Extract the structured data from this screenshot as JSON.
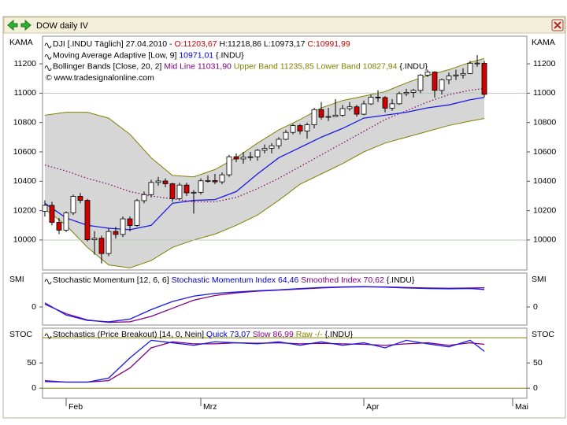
{
  "window": {
    "title": "DOW daily IV"
  },
  "chart_data": [
    {
      "type": "candlestick",
      "axis_label": "KAMA",
      "legend": [
        [
          {
            "text": "DJI [.INDU Täglich] 27.04.2010 - ",
            "color": "#000000"
          },
          {
            "text": "O:11203,67",
            "color": "#cc0000"
          },
          {
            "text": " H:11218,86 L:10973,17 ",
            "color": "#000000"
          },
          {
            "text": "C:10991,99",
            "color": "#cc0000"
          }
        ],
        [
          {
            "text": "Moving Average Adaptive [Low, 9] ",
            "color": "#000000"
          },
          {
            "text": "10971,01",
            "color": "#0000cc"
          },
          {
            "text": " {.INDU}",
            "color": "#000000"
          }
        ],
        [
          {
            "text": "Bollinger Bands [Close, 20, 2] ",
            "color": "#000000"
          },
          {
            "text": "Mid Line 11031,90",
            "color": "#800080"
          },
          {
            "text": " Upper Band 11235,85 Lower Band 10827,94",
            "color": "#808000"
          },
          {
            "text": " {.INDU}",
            "color": "#000000"
          }
        ],
        [
          {
            "text": "© www.tradesignalonline.com",
            "color": "#000000"
          }
        ]
      ],
      "x": [
        0,
        1,
        2,
        3,
        4,
        5,
        6,
        7,
        8,
        9,
        10,
        11,
        12,
        13,
        14,
        15,
        16,
        17,
        18,
        19,
        20,
        21,
        22,
        23,
        24,
        25,
        26,
        27,
        28,
        29,
        30,
        31,
        32,
        33,
        34,
        35,
        36,
        37,
        38,
        39,
        40,
        41,
        42,
        43,
        44,
        45,
        46,
        47,
        48,
        49,
        50,
        51,
        52,
        53,
        54,
        55,
        56,
        57,
        58,
        59,
        60,
        61,
        62
      ],
      "open": [
        10195,
        10236,
        10120,
        10067,
        10185,
        10297,
        10270,
        10002,
        10012,
        9908,
        10058,
        10038,
        10144,
        10099,
        10268,
        10309,
        10392,
        10402,
        10383,
        10282,
        10374,
        10321,
        10325,
        10403,
        10405,
        10396,
        10444,
        10567,
        10552,
        10564,
        10567,
        10611,
        10625,
        10642,
        10686,
        10733,
        10779,
        10742,
        10785,
        10888,
        10836,
        10841,
        10850,
        10895,
        10907,
        10857,
        10927,
        10973,
        10970,
        10898,
        10928,
        10997,
        11005,
        11019,
        11123,
        11144,
        11019,
        11092,
        11117,
        11124,
        11134,
        11204,
        11203.67
      ],
      "high": [
        10270,
        10260,
        10150,
        10195,
        10310,
        10320,
        10280,
        10060,
        10030,
        10080,
        10090,
        10160,
        10160,
        10280,
        10330,
        10410,
        10430,
        10420,
        10390,
        10390,
        10390,
        10340,
        10420,
        10440,
        10450,
        10460,
        10580,
        10590,
        10600,
        10600,
        10620,
        10650,
        10660,
        10700,
        10750,
        10790,
        10790,
        10800,
        10900,
        10940,
        10900,
        10960,
        10920,
        10940,
        10920,
        10950,
        10990,
        11020,
        10980,
        10960,
        11010,
        11030,
        11030,
        11130,
        11160,
        11150,
        11100,
        11140,
        11160,
        11170,
        11220,
        11260,
        11218.86
      ],
      "low": [
        10160,
        10100,
        10040,
        10055,
        10170,
        10250,
        9990,
        9900,
        9840,
        9890,
        10010,
        10020,
        10060,
        10090,
        10250,
        10290,
        10370,
        10360,
        10260,
        10270,
        10300,
        10180,
        10310,
        10390,
        10380,
        10380,
        10430,
        10530,
        10520,
        10540,
        10540,
        10590,
        10590,
        10620,
        10680,
        10720,
        10720,
        10690,
        10760,
        10820,
        10810,
        10840,
        10840,
        10880,
        10840,
        10850,
        10920,
        10940,
        10870,
        10880,
        10920,
        10980,
        10970,
        11000,
        11110,
        10970,
        10990,
        11060,
        11090,
        11100,
        11130,
        11180,
        10973.17
      ],
      "close": [
        10236,
        10120,
        10067,
        10185,
        10297,
        10270,
        10002,
        10012,
        9908,
        10058,
        10038,
        10144,
        10099,
        10268,
        10309,
        10392,
        10402,
        10383,
        10282,
        10374,
        10321,
        10325,
        10403,
        10405,
        10396,
        10444,
        10567,
        10552,
        10564,
        10567,
        10611,
        10625,
        10642,
        10686,
        10733,
        10779,
        10742,
        10785,
        10888,
        10836,
        10841,
        10850,
        10895,
        10907,
        10857,
        10927,
        10973,
        10970,
        10898,
        10928,
        10997,
        11005,
        11019,
        11123,
        11144,
        11019,
        11092,
        11117,
        11124,
        11134,
        11204,
        11205,
        10991.99
      ],
      "up_color": "#ffffff",
      "down_color": "#d00000",
      "band": {
        "x": [
          0,
          3,
          6,
          9,
          12,
          15,
          18,
          21,
          24,
          27,
          30,
          33,
          36,
          39,
          42,
          45,
          48,
          51,
          54,
          57,
          60,
          62
        ],
        "upper": [
          10850,
          10870,
          10870,
          10830,
          10720,
          10560,
          10440,
          10430,
          10480,
          10560,
          10660,
          10750,
          10820,
          10900,
          10950,
          10980,
          11010,
          11070,
          11120,
          11160,
          11210,
          11236
        ],
        "lower": [
          10210,
          10100,
          9950,
          9830,
          9810,
          9860,
          9950,
          10000,
          10040,
          10100,
          10170,
          10270,
          10380,
          10450,
          10520,
          10600,
          10660,
          10700,
          10740,
          10780,
          10810,
          10828
        ],
        "color": "#808000",
        "fill": "#d6d6d6"
      },
      "series": [
        {
          "color": "#800060",
          "style": "dotted",
          "x": [
            0,
            3,
            6,
            9,
            12,
            15,
            18,
            21,
            24,
            27,
            30,
            33,
            36,
            39,
            42,
            45,
            48,
            51,
            54,
            57,
            60,
            62
          ],
          "values": [
            10510,
            10470,
            10420,
            10380,
            10330,
            10300,
            10280,
            10260,
            10260,
            10290,
            10350,
            10420,
            10500,
            10580,
            10660,
            10740,
            10820,
            10880,
            10940,
            10990,
            11020,
            11032
          ]
        },
        {
          "color": "#1a1ae6",
          "style": "solid",
          "x": [
            0,
            3,
            6,
            9,
            12,
            15,
            18,
            21,
            24,
            27,
            30,
            33,
            36,
            39,
            42,
            45,
            48,
            51,
            54,
            57,
            60,
            62
          ],
          "values": [
            10250,
            10150,
            10100,
            10080,
            10070,
            10100,
            10250,
            10270,
            10275,
            10330,
            10450,
            10560,
            10630,
            10700,
            10760,
            10830,
            10850,
            10870,
            10900,
            10920,
            10955,
            10971
          ]
        }
      ],
      "xlim": [
        -0.33,
        68
      ],
      "ylim": [
        9796,
        11388
      ],
      "yticks": [
        10000,
        10200,
        10400,
        10600,
        10800,
        11000,
        11200
      ],
      "hlines": [
        10000,
        11000
      ]
    },
    {
      "type": "line",
      "axis_label": "SMI",
      "legend": [
        [
          {
            "text": "Stochastic Momentum [12, 6, 6] ",
            "color": "#000000"
          },
          {
            "text": "Stochastic Momentum Index 64,46",
            "color": "#0000cc"
          },
          {
            "text": " Smoothed Index 70,62",
            "color": "#800080"
          },
          {
            "text": " {.INDU}",
            "color": "#000000"
          }
        ]
      ],
      "series": [
        {
          "color": "#800080",
          "style": "solid",
          "x": [
            0,
            3,
            6,
            9,
            12,
            15,
            18,
            21,
            24,
            27,
            30,
            33,
            36,
            39,
            42,
            45,
            48,
            51,
            54,
            57,
            60,
            62
          ],
          "values": [
            10,
            -25,
            -48,
            -57,
            -55,
            -35,
            -5,
            25,
            42,
            52,
            58,
            62,
            66,
            70,
            73,
            74,
            74,
            72,
            70,
            69,
            70,
            70.62
          ]
        },
        {
          "color": "#1a1ae6",
          "style": "solid",
          "x": [
            0,
            3,
            6,
            9,
            12,
            15,
            18,
            21,
            24,
            27,
            30,
            33,
            36,
            39,
            42,
            45,
            48,
            51,
            54,
            57,
            60,
            62
          ],
          "values": [
            15,
            -30,
            -50,
            -55,
            -45,
            -10,
            20,
            40,
            50,
            55,
            60,
            63,
            68,
            72,
            74,
            75,
            73,
            70,
            68,
            67,
            68,
            64.46
          ]
        }
      ],
      "xlim": [
        -0.33,
        68
      ],
      "ylim": [
        -67,
        125
      ],
      "yticks": [
        0
      ]
    },
    {
      "type": "line",
      "axis_label": "STOC",
      "legend": [
        [
          {
            "text": "Stochastics (Price Breakout) [14, 0, Nein] ",
            "color": "#000000"
          },
          {
            "text": "Quick 73,07",
            "color": "#0000cc"
          },
          {
            "text": " Slow 86,99",
            "color": "#800080"
          },
          {
            "text": " Raw -/-",
            "color": "#808000"
          },
          {
            "text": " {.INDU}",
            "color": "#000000"
          }
        ]
      ],
      "series": [
        {
          "color": "#800080",
          "style": "solid",
          "x": [
            0,
            3,
            6,
            9,
            12,
            15,
            18,
            21,
            24,
            27,
            30,
            33,
            36,
            39,
            42,
            45,
            48,
            51,
            54,
            57,
            60,
            62
          ],
          "values": [
            15,
            12,
            12,
            15,
            40,
            80,
            92,
            88,
            88,
            90,
            89,
            90,
            88,
            89,
            88,
            87,
            85,
            88,
            90,
            85,
            90,
            86.99
          ]
        },
        {
          "color": "#1a1ae6",
          "style": "solid",
          "x": [
            0,
            3,
            6,
            9,
            12,
            15,
            18,
            21,
            24,
            27,
            30,
            33,
            36,
            39,
            42,
            45,
            48,
            51,
            54,
            57,
            60,
            62
          ],
          "values": [
            13,
            12,
            12,
            20,
            60,
            95,
            90,
            85,
            92,
            90,
            88,
            92,
            85,
            92,
            85,
            90,
            80,
            95,
            88,
            82,
            95,
            73.07
          ]
        }
      ],
      "xlim": [
        -0.33,
        68
      ],
      "ylim": [
        -20,
        119
      ],
      "yticks": [
        0,
        50
      ],
      "hlines": [
        0,
        100
      ],
      "hline_color": "#808000",
      "xticks": [
        {
          "value": 3,
          "label": "Feb"
        },
        {
          "value": 22,
          "label": "Mrz"
        },
        {
          "value": 45,
          "label": "Apr"
        },
        {
          "value": 66,
          "label": "Mai"
        }
      ]
    }
  ]
}
